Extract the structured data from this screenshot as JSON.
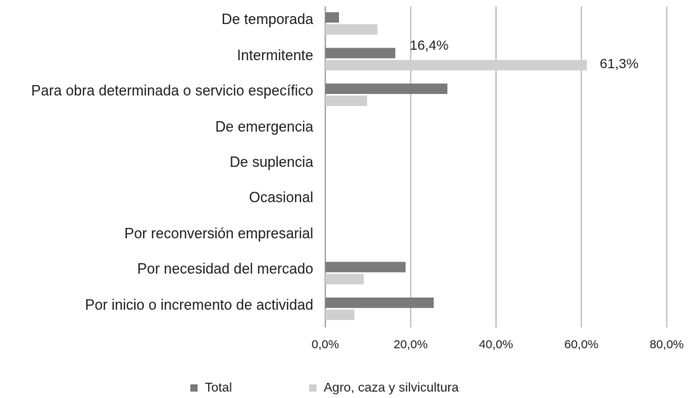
{
  "chart_data": {
    "type": "hbar",
    "categories": [
      "De temporada",
      "Intermitente",
      "Para obra determinada o servicio específico",
      "De emergencia",
      "De suplencia",
      "Ocasional",
      "Por reconversión empresarial",
      "Por necesidad del mercado",
      "Por inicio o incremento de actividad"
    ],
    "series": [
      {
        "name": "Total",
        "color": "#7a7a7a",
        "values": [
          3.2,
          16.4,
          28.6,
          0,
          0,
          0,
          0,
          18.8,
          25.4
        ],
        "value_labels": [
          null,
          "16,4%",
          null,
          null,
          null,
          null,
          null,
          null,
          null
        ]
      },
      {
        "name": "Agro, caza y silvicultura",
        "color": "#cfcfcf",
        "values": [
          12.2,
          61.3,
          9.8,
          0,
          0,
          0,
          0,
          9.0,
          6.8
        ],
        "value_labels": [
          null,
          "61,3%",
          null,
          null,
          null,
          null,
          null,
          null,
          null
        ]
      }
    ],
    "xlim": [
      0,
      80
    ],
    "xticks": [
      {
        "value": 0,
        "label": "0,0%"
      },
      {
        "value": 20,
        "label": "20,0%"
      },
      {
        "value": 40,
        "label": "40,0%"
      },
      {
        "value": 60,
        "label": "60,0%"
      },
      {
        "value": 80,
        "label": "80,0%"
      }
    ],
    "grid": true,
    "legend": "bottom"
  }
}
